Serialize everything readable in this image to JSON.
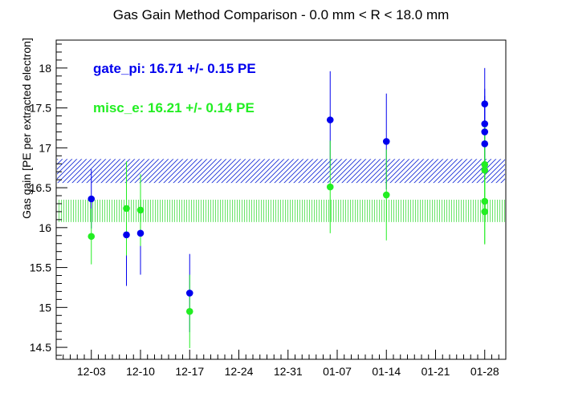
{
  "chart_data": {
    "type": "scatter",
    "title": "Gas Gain Method Comparison - 0.0 mm < R < 18.0 mm",
    "xlabel": "",
    "ylabel": "Gas gain [PE per extracted electron]",
    "x_is_date": true,
    "xlim": [
      "2023-11-28",
      "2024-01-31"
    ],
    "ylim": [
      14.35,
      18.35
    ],
    "x_ticks": [
      "12-03",
      "12-10",
      "12-17",
      "12-24",
      "12-31",
      "01-07",
      "01-14",
      "01-21",
      "01-28"
    ],
    "y_ticks": [
      14.5,
      15,
      15.5,
      16,
      16.5,
      17,
      17.5,
      18
    ],
    "grid": false,
    "series": [
      {
        "name": "gate_pi",
        "color": "#0000ee",
        "legend_text": "gate_pi: 16.71 +/- 0.15 PE",
        "mean": 16.71,
        "mean_err": 0.15,
        "band": [
          16.56,
          16.86
        ],
        "points": [
          {
            "x": "2023-12-03",
            "y": 16.36,
            "err": 0.37
          },
          {
            "x": "2023-12-08",
            "y": 15.91,
            "err": 0.64
          },
          {
            "x": "2023-12-10",
            "y": 15.93,
            "err": 0.52
          },
          {
            "x": "2023-12-17",
            "y": 15.18,
            "err": 0.49
          },
          {
            "x": "2024-01-06",
            "y": 17.35,
            "err": 0.61
          },
          {
            "x": "2024-01-14",
            "y": 17.08,
            "err": 0.6
          },
          {
            "x": "2024-01-28",
            "y": 17.55,
            "err": 0.45
          },
          {
            "x": "2024-01-28",
            "y": 17.3,
            "err": 0.44
          },
          {
            "x": "2024-01-28",
            "y": 17.2,
            "err": 0.45
          },
          {
            "x": "2024-01-28",
            "y": 17.05,
            "err": 0.45
          }
        ]
      },
      {
        "name": "misc_e",
        "color": "#22ee22",
        "legend_text": "misc_e: 16.21 +/- 0.14 PE",
        "mean": 16.21,
        "mean_err": 0.14,
        "band": [
          16.07,
          16.35
        ],
        "points": [
          {
            "x": "2023-12-03",
            "y": 15.89,
            "err": 0.35
          },
          {
            "x": "2023-12-08",
            "y": 16.24,
            "err": 0.59
          },
          {
            "x": "2023-12-10",
            "y": 16.22,
            "err": 0.45
          },
          {
            "x": "2023-12-17",
            "y": 14.95,
            "err": 0.46
          },
          {
            "x": "2024-01-06",
            "y": 16.51,
            "err": 0.58
          },
          {
            "x": "2024-01-14",
            "y": 16.41,
            "err": 0.57
          },
          {
            "x": "2024-01-28",
            "y": 16.79,
            "err": 0.55
          },
          {
            "x": "2024-01-28",
            "y": 16.72,
            "err": 0.54
          },
          {
            "x": "2024-01-28",
            "y": 16.33,
            "err": 0.54
          },
          {
            "x": "2024-01-28",
            "y": 16.2,
            "err": 0.4
          }
        ]
      }
    ]
  }
}
